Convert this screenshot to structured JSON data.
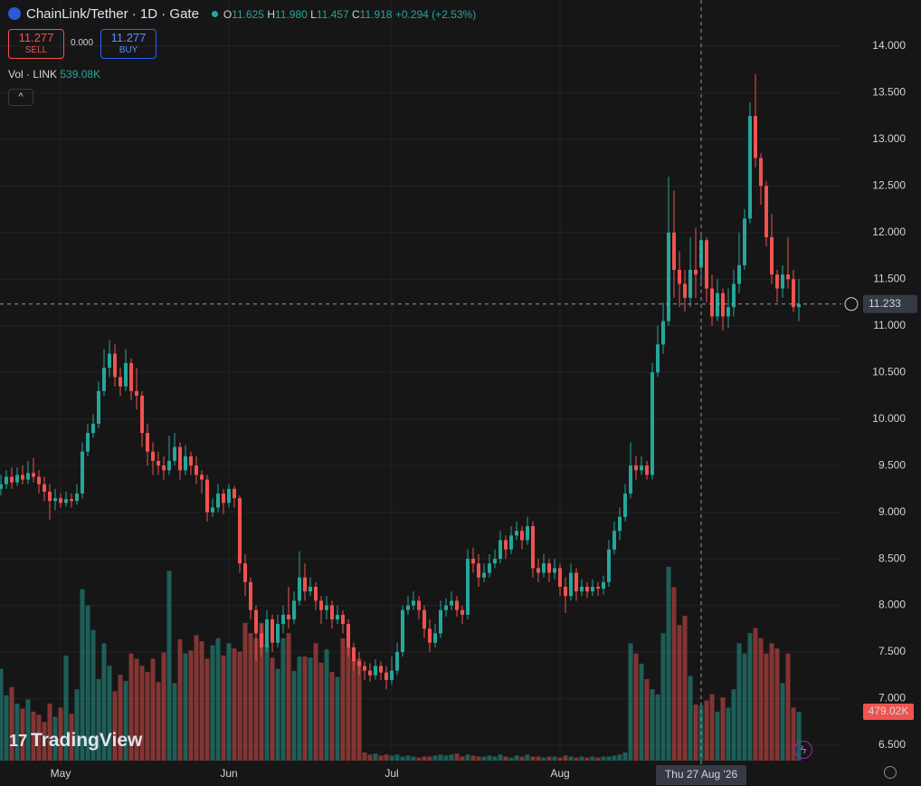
{
  "header": {
    "symbol": "ChainLink/Tether · 1D · Gate",
    "ohlc": [
      {
        "label": "O",
        "value": "11.625"
      },
      {
        "label": "H",
        "value": "11.980"
      },
      {
        "label": "L",
        "value": "11.457"
      },
      {
        "label": "C",
        "value": "11.918"
      }
    ],
    "change": "+0.294 (+2.53%)"
  },
  "sell": {
    "price": "11.277",
    "label": "SELL"
  },
  "spread": "0.000",
  "buy": {
    "price": "11.277",
    "label": "BUY"
  },
  "volume_legend": {
    "label": "Vol · LINK",
    "value": "539.08K"
  },
  "logo": "TradingView",
  "chart_data": {
    "type": "candlestick",
    "up_color": "#26a69a",
    "down_color": "#ef5350",
    "grid": true,
    "ylim": [
      6.286,
      14.495
    ],
    "yticks": [
      {
        "value": 6.5,
        "label": "6.500"
      },
      {
        "value": 7,
        "label": "7.000"
      },
      {
        "value": 7.5,
        "label": "7.500"
      },
      {
        "value": 8,
        "label": "8.000"
      },
      {
        "value": 8.5,
        "label": "8.500"
      },
      {
        "value": 9,
        "label": "9.000"
      },
      {
        "value": 9.5,
        "label": "9.500"
      },
      {
        "value": 10,
        "label": "10.000"
      },
      {
        "value": 10.5,
        "label": "10.500"
      },
      {
        "value": 11,
        "label": "11.000"
      },
      {
        "value": 11.5,
        "label": "11.500"
      },
      {
        "value": 12,
        "label": "12.000"
      },
      {
        "value": 12.5,
        "label": "12.500"
      },
      {
        "value": 13,
        "label": "13.000"
      },
      {
        "value": 13.5,
        "label": "13.500"
      },
      {
        "value": 14,
        "label": "14.000"
      }
    ],
    "xticks": [
      {
        "value": 11,
        "label": "May"
      },
      {
        "value": 42,
        "label": "Jun"
      },
      {
        "value": 72,
        "label": "Jul"
      },
      {
        "value": 103,
        "label": "Aug"
      }
    ],
    "crosshair_x": {
      "value": 129,
      "label": "Thu 27 Aug '26"
    },
    "crosshair_y": {
      "value": 11.233,
      "label": "11.233"
    },
    "open": [
      9.25,
      9.3,
      9.38,
      9.32,
      9.4,
      9.35,
      9.42,
      9.38,
      9.3,
      9.22,
      9.12,
      9.15,
      9.1,
      9.14,
      9.12,
      9.2,
      9.65,
      9.85,
      9.95,
      10.3,
      10.55,
      10.7,
      10.45,
      10.35,
      10.6,
      10.3,
      10.25,
      9.85,
      9.65,
      9.55,
      9.5,
      9.45,
      9.55,
      9.7,
      9.45,
      9.6,
      9.5,
      9.4,
      9.35,
      9.0,
      9.05,
      9.2,
      9.1,
      9.25,
      9.15,
      8.45,
      8.25,
      7.95,
      7.7,
      7.55,
      7.85,
      7.6,
      7.8,
      7.9,
      7.85,
      8.05,
      8.3,
      8.15,
      8.2,
      8.05,
      7.95,
      8.0,
      7.85,
      7.9,
      7.8,
      7.55,
      7.4,
      7.35,
      7.3,
      7.25,
      7.35,
      7.28,
      7.2,
      7.3,
      7.5,
      7.95,
      8.0,
      8.05,
      7.95,
      7.75,
      7.6,
      7.7,
      7.95,
      8.0,
      8.05,
      7.95,
      7.9,
      8.5,
      8.45,
      8.3,
      8.35,
      8.45,
      8.5,
      8.7,
      8.6,
      8.75,
      8.8,
      8.7,
      8.85,
      8.4,
      8.35,
      8.45,
      8.35,
      8.4,
      8.2,
      8.1,
      8.35,
      8.15,
      8.2,
      8.15,
      8.2,
      8.18,
      8.25,
      8.6,
      8.8,
      8.95,
      9.2,
      9.5,
      9.45,
      9.5,
      9.4,
      10.5,
      10.8,
      11.05,
      12.0,
      11.6,
      11.45,
      11.3,
      11.6,
      11.625,
      11.918,
      11.4,
      11.1,
      11.35,
      11.1,
      11.2,
      11.45,
      11.65,
      12.15,
      13.25,
      12.8,
      12.5,
      11.95,
      11.55,
      11.4,
      11.55,
      11.5,
      11.2
    ],
    "high": [
      9.4,
      9.45,
      9.48,
      9.48,
      9.5,
      9.55,
      9.58,
      9.45,
      9.38,
      9.3,
      9.25,
      9.2,
      9.22,
      9.2,
      9.3,
      9.75,
      9.95,
      10.05,
      10.4,
      10.75,
      10.85,
      10.8,
      10.55,
      10.75,
      10.65,
      10.55,
      10.3,
      9.95,
      9.75,
      9.65,
      9.6,
      9.82,
      9.85,
      9.75,
      9.72,
      9.65,
      9.6,
      9.45,
      9.4,
      9.15,
      9.3,
      9.25,
      9.3,
      9.28,
      9.18,
      8.55,
      8.3,
      8.0,
      7.8,
      7.95,
      7.9,
      7.9,
      8.0,
      8.2,
      8.15,
      8.58,
      8.45,
      8.3,
      8.25,
      8.1,
      8.1,
      8.05,
      8.0,
      7.95,
      7.85,
      7.6,
      7.5,
      7.4,
      7.38,
      7.42,
      7.4,
      7.35,
      7.45,
      7.6,
      8.0,
      8.1,
      8.15,
      8.1,
      8.0,
      7.85,
      7.8,
      8.05,
      8.08,
      8.15,
      8.1,
      8.0,
      8.6,
      8.62,
      8.55,
      8.45,
      8.55,
      8.6,
      8.8,
      8.75,
      8.85,
      8.9,
      8.85,
      8.95,
      8.9,
      8.5,
      8.55,
      8.5,
      8.5,
      8.45,
      8.3,
      8.45,
      8.4,
      8.28,
      8.25,
      8.28,
      8.25,
      8.32,
      8.7,
      8.9,
      9.05,
      9.3,
      9.75,
      9.6,
      9.6,
      9.55,
      10.6,
      11.0,
      11.25,
      12.6,
      12.45,
      11.8,
      11.6,
      11.95,
      12.05,
      11.98,
      11.95,
      11.55,
      11.5,
      11.4,
      11.4,
      11.6,
      12.0,
      12.25,
      13.4,
      13.7,
      12.85,
      12.55,
      12.2,
      11.6,
      11.65,
      11.95,
      11.6,
      11.5
    ],
    "low": [
      9.18,
      9.25,
      9.25,
      9.28,
      9.3,
      9.3,
      9.32,
      9.2,
      9.12,
      8.92,
      9.02,
      9.05,
      9.06,
      9.05,
      9.08,
      9.15,
      9.6,
      9.8,
      9.9,
      10.25,
      10.45,
      10.35,
      10.25,
      10.3,
      10.2,
      10.1,
      9.7,
      9.5,
      9.4,
      9.4,
      9.35,
      9.4,
      9.5,
      9.35,
      9.4,
      9.4,
      9.3,
      9.2,
      8.9,
      8.95,
      9.0,
      8.98,
      9.05,
      9.05,
      8.35,
      8.1,
      7.85,
      7.4,
      7.45,
      7.5,
      7.5,
      7.55,
      7.7,
      7.75,
      7.8,
      8.0,
      8.05,
      8.1,
      7.95,
      7.8,
      7.85,
      7.75,
      7.8,
      7.7,
      7.45,
      7.3,
      7.25,
      7.2,
      7.18,
      7.2,
      7.2,
      7.1,
      7.15,
      7.25,
      7.45,
      7.9,
      7.95,
      7.85,
      7.65,
      7.5,
      7.55,
      7.65,
      7.88,
      7.95,
      7.88,
      7.8,
      7.85,
      8.35,
      8.2,
      8.25,
      8.3,
      8.4,
      8.45,
      8.5,
      8.55,
      8.7,
      8.6,
      8.65,
      8.3,
      8.25,
      8.3,
      8.25,
      8.28,
      8.1,
      7.92,
      8.05,
      8.05,
      8.1,
      8.08,
      8.1,
      8.1,
      8.12,
      8.2,
      8.55,
      8.7,
      8.9,
      9.15,
      9.35,
      9.4,
      9.35,
      9.35,
      10.45,
      10.7,
      11.0,
      11.3,
      11.2,
      11.15,
      11.2,
      11.3,
      11.457,
      11.25,
      11.0,
      11.05,
      10.95,
      10.98,
      11.1,
      11.35,
      11.6,
      12.1,
      12.7,
      12.3,
      11.85,
      11.45,
      11.25,
      11.3,
      11.4,
      11.15,
      11.05
    ],
    "close": [
      9.3,
      9.38,
      9.32,
      9.4,
      9.35,
      9.42,
      9.38,
      9.3,
      9.22,
      9.12,
      9.15,
      9.1,
      9.14,
      9.12,
      9.2,
      9.65,
      9.85,
      9.95,
      10.3,
      10.55,
      10.7,
      10.45,
      10.35,
      10.6,
      10.3,
      10.25,
      9.85,
      9.65,
      9.55,
      9.5,
      9.45,
      9.55,
      9.7,
      9.45,
      9.6,
      9.5,
      9.4,
      9.35,
      9.0,
      9.05,
      9.2,
      9.1,
      9.25,
      9.15,
      8.45,
      8.25,
      7.95,
      7.7,
      7.55,
      7.85,
      7.6,
      7.8,
      7.9,
      7.85,
      8.05,
      8.3,
      8.15,
      8.2,
      8.05,
      7.95,
      8.0,
      7.85,
      7.9,
      7.8,
      7.55,
      7.4,
      7.35,
      7.3,
      7.25,
      7.35,
      7.28,
      7.2,
      7.3,
      7.5,
      7.95,
      8.0,
      8.05,
      7.95,
      7.75,
      7.6,
      7.7,
      7.95,
      8.0,
      8.05,
      7.95,
      7.9,
      8.5,
      8.45,
      8.3,
      8.35,
      8.45,
      8.5,
      8.7,
      8.6,
      8.75,
      8.8,
      8.7,
      8.85,
      8.4,
      8.35,
      8.45,
      8.35,
      8.4,
      8.2,
      8.1,
      8.35,
      8.15,
      8.2,
      8.15,
      8.2,
      8.18,
      8.25,
      8.6,
      8.8,
      8.95,
      9.2,
      9.5,
      9.45,
      9.5,
      9.4,
      10.5,
      10.8,
      11.05,
      12.0,
      11.6,
      11.45,
      11.3,
      11.6,
      11.55,
      11.918,
      11.4,
      11.1,
      11.35,
      11.1,
      11.2,
      11.45,
      11.65,
      12.15,
      13.25,
      12.8,
      12.5,
      11.95,
      11.55,
      11.4,
      11.55,
      11.5,
      11.2,
      11.23
    ],
    "volume_lim": [
      0,
      2840000
    ],
    "volume": [
      900000,
      640000,
      720000,
      560000,
      510000,
      600000,
      480000,
      450000,
      380000,
      560000,
      430000,
      520000,
      1030000,
      460000,
      700000,
      1680000,
      1520000,
      1280000,
      800000,
      1150000,
      930000,
      680000,
      840000,
      780000,
      1050000,
      1000000,
      930000,
      870000,
      1000000,
      770000,
      1060000,
      1860000,
      760000,
      1190000,
      1050000,
      1080000,
      1230000,
      1170000,
      1000000,
      1130000,
      1200000,
      1030000,
      1150000,
      1100000,
      1070000,
      1350000,
      1250000,
      1200000,
      1350000,
      1140000,
      1010000,
      900000,
      1200000,
      1250000,
      880000,
      1020000,
      1020000,
      1010000,
      1150000,
      960000,
      1090000,
      870000,
      820000,
      1200000,
      1120000,
      1000000,
      1000000,
      80000,
      60000,
      70000,
      50000,
      60000,
      50000,
      60000,
      40000,
      50000,
      40000,
      30000,
      40000,
      40000,
      50000,
      60000,
      50000,
      60000,
      70000,
      40000,
      60000,
      50000,
      40000,
      40000,
      50000,
      40000,
      60000,
      40000,
      30000,
      50000,
      40000,
      60000,
      40000,
      40000,
      30000,
      40000,
      40000,
      30000,
      50000,
      40000,
      30000,
      40000,
      30000,
      40000,
      30000,
      40000,
      40000,
      50000,
      60000,
      80000,
      1150000,
      1050000,
      950000,
      800000,
      700000,
      650000,
      1250000,
      1900000,
      1700000,
      1330000,
      1420000,
      830000,
      550000,
      539080,
      590000,
      650000,
      480000,
      620000,
      520000,
      700000,
      1150000,
      1050000,
      1250000,
      1300000,
      1200000,
      1050000,
      1150000,
      1100000,
      760000,
      1050000,
      520000,
      479020
    ],
    "last_volume_label": "479.02K"
  }
}
